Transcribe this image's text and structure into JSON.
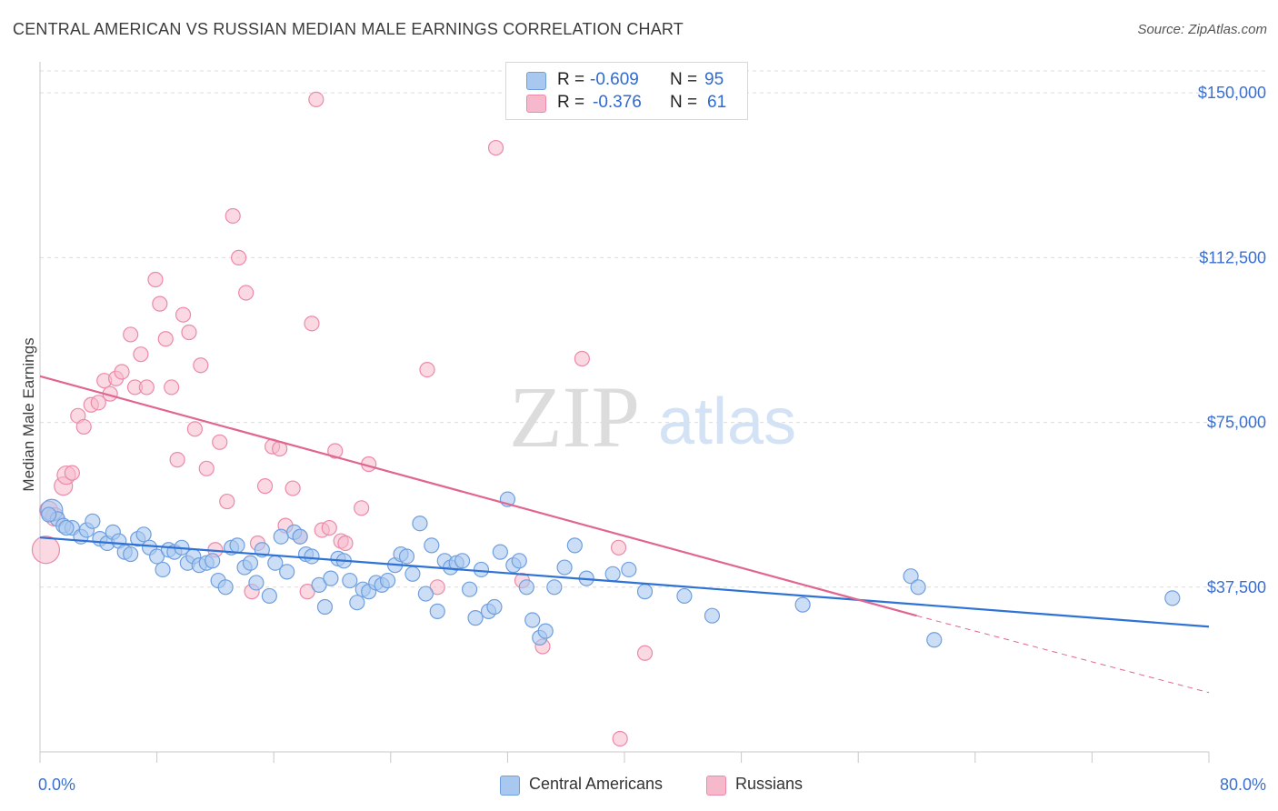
{
  "title": "CENTRAL AMERICAN VS RUSSIAN MEDIAN MALE EARNINGS CORRELATION CHART",
  "source": "Source: ZipAtlas.com",
  "watermark": {
    "zip": "ZIP",
    "atlas": "atlas"
  },
  "legend_top": {
    "row1": {
      "r_label": "R =",
      "r_value": "-0.609",
      "n_label": "N =",
      "n_value": "95"
    },
    "row2": {
      "r_label": "R =",
      "r_value": "-0.376",
      "n_label": "N =",
      "n_value": "61"
    }
  },
  "legend_bottom": {
    "series1": "Central Americans",
    "series2": "Russians"
  },
  "colors": {
    "blue_fill": "#a9c8f0",
    "blue_stroke": "#6f9fde",
    "blue_line": "#2f72d6",
    "pink_fill": "#f6b9cc",
    "pink_stroke": "#ec8aa8",
    "pink_line": "#e0668f",
    "axis_text": "#3a6fd1",
    "grid": "#dcdcdc"
  },
  "chart_data": {
    "type": "scatter",
    "xlabel": "",
    "ylabel": "Median Male Earnings",
    "xlim": [
      0,
      80
    ],
    "ylim": [
      0,
      155000
    ],
    "x_tick_labels": [
      "0.0%",
      "80.0%"
    ],
    "y_ticks": [
      37500,
      75000,
      112500,
      150000
    ],
    "y_tick_labels": [
      "$37,500",
      "$75,000",
      "$112,500",
      "$150,000"
    ],
    "grid": true,
    "legend": "top-center",
    "series": [
      {
        "name": "Central Americans",
        "r": -0.609,
        "n": 95,
        "trend": {
          "x1": 0,
          "y1": 48800,
          "x2": 80,
          "y2": 28500
        },
        "points": [
          [
            0.8,
            55000
          ],
          [
            1.2,
            53000
          ],
          [
            1.6,
            51500
          ],
          [
            2.2,
            51000
          ],
          [
            2.8,
            49000
          ],
          [
            3.2,
            50500
          ],
          [
            3.6,
            52500
          ],
          [
            4.1,
            48500
          ],
          [
            4.6,
            47500
          ],
          [
            5.0,
            50000
          ],
          [
            5.4,
            48000
          ],
          [
            5.8,
            45500
          ],
          [
            6.2,
            45000
          ],
          [
            6.7,
            48500
          ],
          [
            7.1,
            49500
          ],
          [
            7.5,
            46500
          ],
          [
            8.0,
            44500
          ],
          [
            8.4,
            41500
          ],
          [
            8.8,
            46000
          ],
          [
            9.2,
            45500
          ],
          [
            9.7,
            46500
          ],
          [
            10.1,
            43000
          ],
          [
            10.5,
            44500
          ],
          [
            10.9,
            42500
          ],
          [
            11.4,
            43000
          ],
          [
            11.8,
            43500
          ],
          [
            12.2,
            39000
          ],
          [
            12.7,
            37500
          ],
          [
            13.1,
            46500
          ],
          [
            13.5,
            47000
          ],
          [
            14.0,
            42000
          ],
          [
            14.4,
            43000
          ],
          [
            14.8,
            38500
          ],
          [
            15.2,
            46000
          ],
          [
            15.7,
            35500
          ],
          [
            16.1,
            43000
          ],
          [
            16.5,
            49000
          ],
          [
            16.9,
            41000
          ],
          [
            17.4,
            50000
          ],
          [
            17.8,
            49000
          ],
          [
            18.2,
            45000
          ],
          [
            18.6,
            44500
          ],
          [
            19.1,
            38000
          ],
          [
            19.5,
            33000
          ],
          [
            19.9,
            39500
          ],
          [
            20.4,
            44000
          ],
          [
            20.8,
            43500
          ],
          [
            21.2,
            39000
          ],
          [
            21.7,
            34000
          ],
          [
            22.1,
            37000
          ],
          [
            22.5,
            36500
          ],
          [
            23.0,
            38500
          ],
          [
            23.4,
            38000
          ],
          [
            23.8,
            39000
          ],
          [
            24.3,
            42500
          ],
          [
            24.7,
            45000
          ],
          [
            25.1,
            44500
          ],
          [
            25.5,
            40500
          ],
          [
            26.0,
            52000
          ],
          [
            26.4,
            36000
          ],
          [
            26.8,
            47000
          ],
          [
            27.2,
            32000
          ],
          [
            27.7,
            43500
          ],
          [
            28.1,
            42000
          ],
          [
            28.5,
            43000
          ],
          [
            28.9,
            43500
          ],
          [
            29.4,
            37000
          ],
          [
            29.8,
            30500
          ],
          [
            30.2,
            41500
          ],
          [
            30.7,
            32000
          ],
          [
            31.1,
            33000
          ],
          [
            31.5,
            45500
          ],
          [
            32.0,
            57500
          ],
          [
            32.4,
            42500
          ],
          [
            32.8,
            43500
          ],
          [
            33.3,
            37500
          ],
          [
            33.7,
            30000
          ],
          [
            34.2,
            26000
          ],
          [
            34.6,
            27500
          ],
          [
            35.2,
            37500
          ],
          [
            35.9,
            42000
          ],
          [
            36.6,
            47000
          ],
          [
            37.4,
            39500
          ],
          [
            39.2,
            40500
          ],
          [
            40.3,
            41500
          ],
          [
            41.4,
            36500
          ],
          [
            44.1,
            35500
          ],
          [
            46.0,
            31000
          ],
          [
            52.2,
            33500
          ],
          [
            59.6,
            40000
          ],
          [
            60.1,
            37500
          ],
          [
            61.2,
            25500
          ],
          [
            77.5,
            35000
          ],
          [
            0.6,
            54000
          ],
          [
            1.8,
            51000
          ]
        ]
      },
      {
        "name": "Russians",
        "r": -0.376,
        "n": 61,
        "trend": {
          "x1": 0,
          "y1": 85500,
          "x2": 60,
          "y2": 31000,
          "dash_to": {
            "x": 80,
            "y": 13500
          }
        },
        "points": [
          [
            0.4,
            46000
          ],
          [
            0.6,
            55000
          ],
          [
            1.0,
            53500
          ],
          [
            1.6,
            60500
          ],
          [
            1.8,
            63000
          ],
          [
            2.2,
            63500
          ],
          [
            2.6,
            76500
          ],
          [
            3.0,
            74000
          ],
          [
            3.5,
            79000
          ],
          [
            4.0,
            79500
          ],
          [
            4.4,
            84500
          ],
          [
            4.8,
            81500
          ],
          [
            5.2,
            85000
          ],
          [
            5.6,
            86500
          ],
          [
            6.2,
            95000
          ],
          [
            6.5,
            83000
          ],
          [
            6.9,
            90500
          ],
          [
            7.3,
            83000
          ],
          [
            7.9,
            107500
          ],
          [
            8.2,
            102000
          ],
          [
            8.6,
            94000
          ],
          [
            9.0,
            83000
          ],
          [
            9.4,
            66500
          ],
          [
            9.8,
            99500
          ],
          [
            10.2,
            95500
          ],
          [
            10.6,
            73500
          ],
          [
            11.0,
            88000
          ],
          [
            11.4,
            64500
          ],
          [
            12.0,
            46000
          ],
          [
            12.3,
            70500
          ],
          [
            12.8,
            57000
          ],
          [
            13.2,
            122000
          ],
          [
            13.6,
            112500
          ],
          [
            14.1,
            104500
          ],
          [
            14.5,
            36500
          ],
          [
            14.9,
            47500
          ],
          [
            15.4,
            60500
          ],
          [
            15.9,
            69500
          ],
          [
            16.4,
            69000
          ],
          [
            16.8,
            51500
          ],
          [
            17.3,
            60000
          ],
          [
            17.8,
            49000
          ],
          [
            18.3,
            36500
          ],
          [
            18.6,
            97500
          ],
          [
            18.9,
            148500
          ],
          [
            19.3,
            50500
          ],
          [
            19.8,
            51000
          ],
          [
            20.2,
            68500
          ],
          [
            20.6,
            48000
          ],
          [
            20.9,
            47500
          ],
          [
            22.0,
            55500
          ],
          [
            22.5,
            65500
          ],
          [
            26.5,
            87000
          ],
          [
            27.2,
            37500
          ],
          [
            31.2,
            137500
          ],
          [
            33.0,
            39000
          ],
          [
            34.4,
            24000
          ],
          [
            37.1,
            89500
          ],
          [
            39.6,
            46500
          ],
          [
            39.7,
            3000
          ],
          [
            41.4,
            22500
          ]
        ]
      }
    ]
  }
}
